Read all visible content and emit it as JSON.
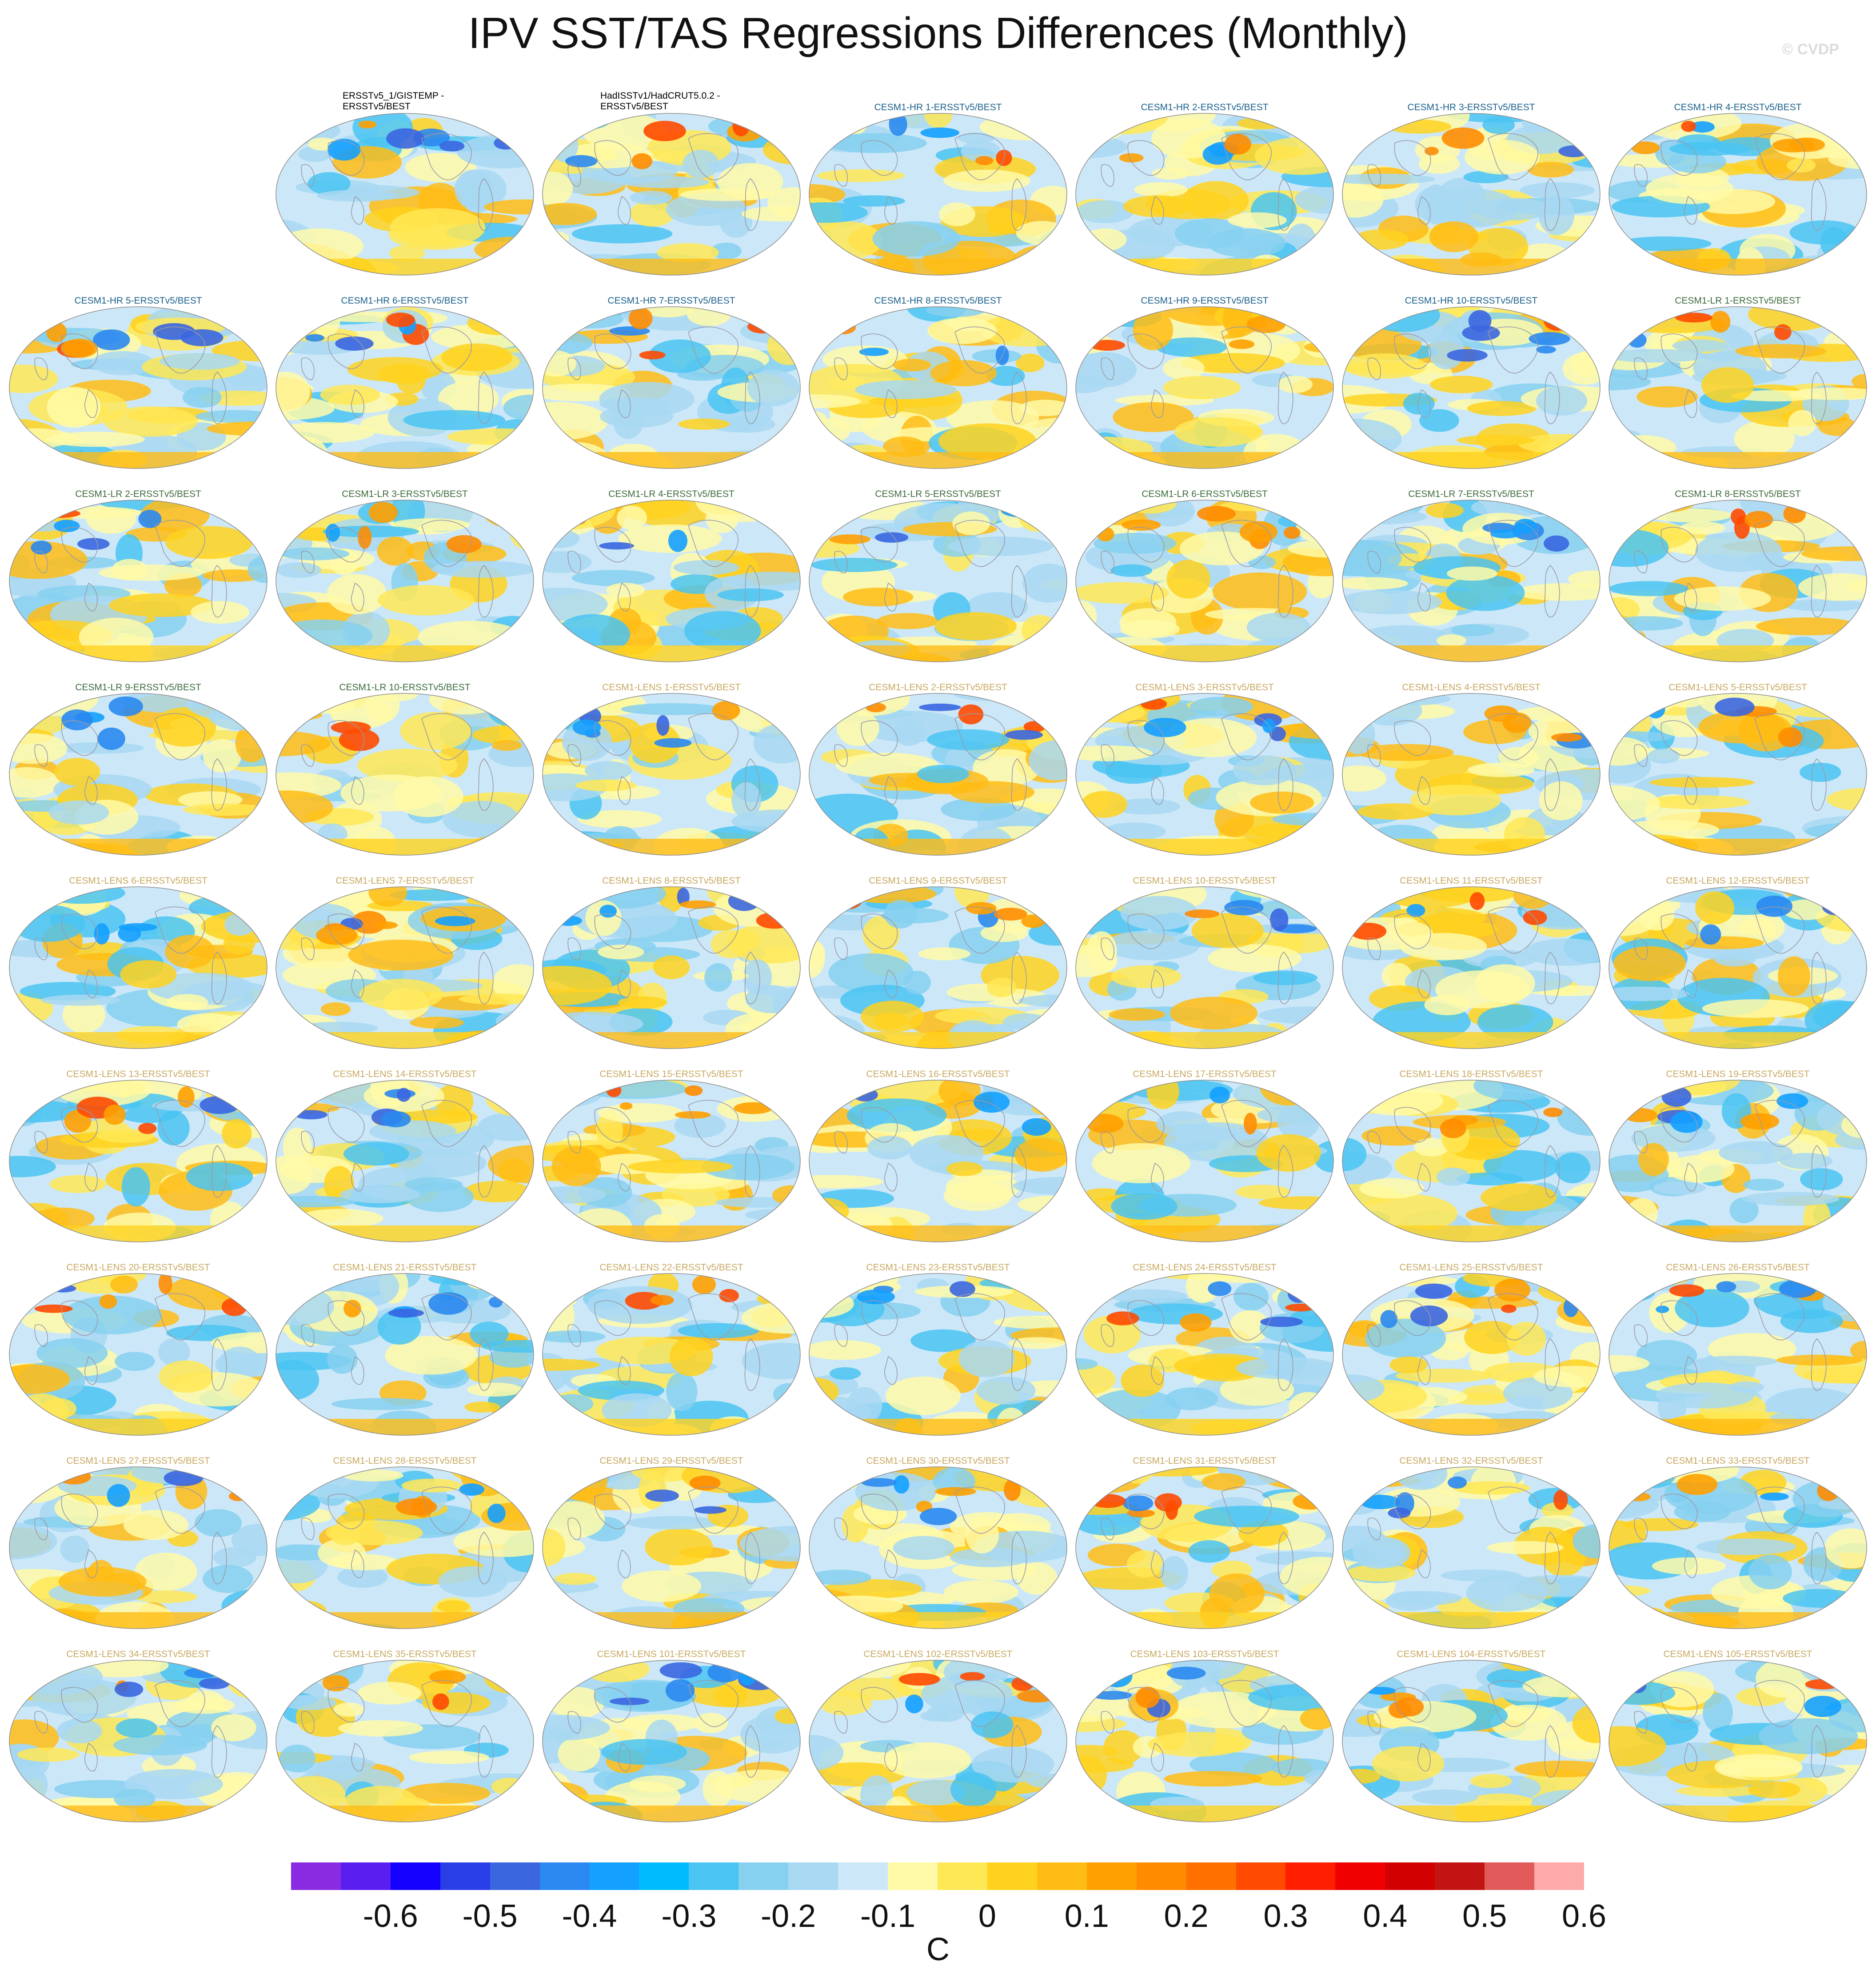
{
  "title": "IPV SST/TAS Regressions Differences (Monthly)",
  "watermark": "© CVDP",
  "chart_data": {
    "type": "heatmap",
    "title": "IPV SST/TAS Regressions Differences (Monthly)",
    "projection": "global ellipse map panels",
    "grid": [
      9,
      7
    ],
    "units": "C",
    "colorbar": {
      "tick_labels": [
        "-0.6",
        "-0.5",
        "-0.4",
        "-0.3",
        "-0.2",
        "-0.1",
        "0",
        "0.1",
        "0.2",
        "0.3",
        "0.4",
        "0.5",
        "0.6"
      ],
      "colors": [
        "#8a2be2",
        "#5a1ef0",
        "#1400ff",
        "#2a3ee8",
        "#3a66e0",
        "#2a88f0",
        "#14a0ff",
        "#00bcff",
        "#4ac4f2",
        "#86d0f0",
        "#a8d8f2",
        "#cce8f8",
        "#fffaa8",
        "#ffe855",
        "#ffd21e",
        "#ffbc14",
        "#ffa000",
        "#ff8c00",
        "#ff7000",
        "#ff4a00",
        "#ff1e00",
        "#f00000",
        "#d20000",
        "#c31414",
        "#e05a5a",
        "#ffaaaa"
      ]
    },
    "title_colors": {
      "obs": "#000000",
      "hr": "#1a5f8a",
      "lr": "#3d6b3d",
      "lens": "#c8a860"
    },
    "panels": [
      {
        "label": "ERSSTv5_1/GISTEMP - ERSSTv5/BEST",
        "group": "obs"
      },
      {
        "label": "HadISSTv1/HadCRUT5.0.2 - ERSSTv5/BEST",
        "group": "obs"
      },
      {
        "label": "CESM1-HR 1-ERSSTv5/BEST",
        "group": "hr"
      },
      {
        "label": "CESM1-HR 2-ERSSTv5/BEST",
        "group": "hr"
      },
      {
        "label": "CESM1-HR 3-ERSSTv5/BEST",
        "group": "hr"
      },
      {
        "label": "CESM1-HR 4-ERSSTv5/BEST",
        "group": "hr"
      },
      {
        "label": "CESM1-HR 5-ERSSTv5/BEST",
        "group": "hr"
      },
      {
        "label": "CESM1-HR 6-ERSSTv5/BEST",
        "group": "hr"
      },
      {
        "label": "CESM1-HR 7-ERSSTv5/BEST",
        "group": "hr"
      },
      {
        "label": "CESM1-HR 8-ERSSTv5/BEST",
        "group": "hr"
      },
      {
        "label": "CESM1-HR 9-ERSSTv5/BEST",
        "group": "hr"
      },
      {
        "label": "CESM1-HR 10-ERSSTv5/BEST",
        "group": "hr"
      },
      {
        "label": "CESM1-LR 1-ERSSTv5/BEST",
        "group": "lr"
      },
      {
        "label": "CESM1-LR 2-ERSSTv5/BEST",
        "group": "lr"
      },
      {
        "label": "CESM1-LR 3-ERSSTv5/BEST",
        "group": "lr"
      },
      {
        "label": "CESM1-LR 4-ERSSTv5/BEST",
        "group": "lr"
      },
      {
        "label": "CESM1-LR 5-ERSSTv5/BEST",
        "group": "lr"
      },
      {
        "label": "CESM1-LR 6-ERSSTv5/BEST",
        "group": "lr"
      },
      {
        "label": "CESM1-LR 7-ERSSTv5/BEST",
        "group": "lr"
      },
      {
        "label": "CESM1-LR 8-ERSSTv5/BEST",
        "group": "lr"
      },
      {
        "label": "CESM1-LR 9-ERSSTv5/BEST",
        "group": "lr"
      },
      {
        "label": "CESM1-LR 10-ERSSTv5/BEST",
        "group": "lr"
      },
      {
        "label": "CESM1-LENS 1-ERSSTv5/BEST",
        "group": "lens"
      },
      {
        "label": "CESM1-LENS 2-ERSSTv5/BEST",
        "group": "lens"
      },
      {
        "label": "CESM1-LENS 3-ERSSTv5/BEST",
        "group": "lens"
      },
      {
        "label": "CESM1-LENS 4-ERSSTv5/BEST",
        "group": "lens"
      },
      {
        "label": "CESM1-LENS 5-ERSSTv5/BEST",
        "group": "lens"
      },
      {
        "label": "CESM1-LENS 6-ERSSTv5/BEST",
        "group": "lens"
      },
      {
        "label": "CESM1-LENS 7-ERSSTv5/BEST",
        "group": "lens"
      },
      {
        "label": "CESM1-LENS 8-ERSSTv5/BEST",
        "group": "lens"
      },
      {
        "label": "CESM1-LENS 9-ERSSTv5/BEST",
        "group": "lens"
      },
      {
        "label": "CESM1-LENS 10-ERSSTv5/BEST",
        "group": "lens"
      },
      {
        "label": "CESM1-LENS 11-ERSSTv5/BEST",
        "group": "lens"
      },
      {
        "label": "CESM1-LENS 12-ERSSTv5/BEST",
        "group": "lens"
      },
      {
        "label": "CESM1-LENS 13-ERSSTv5/BEST",
        "group": "lens"
      },
      {
        "label": "CESM1-LENS 14-ERSSTv5/BEST",
        "group": "lens"
      },
      {
        "label": "CESM1-LENS 15-ERSSTv5/BEST",
        "group": "lens"
      },
      {
        "label": "CESM1-LENS 16-ERSSTv5/BEST",
        "group": "lens"
      },
      {
        "label": "CESM1-LENS 17-ERSSTv5/BEST",
        "group": "lens"
      },
      {
        "label": "CESM1-LENS 18-ERSSTv5/BEST",
        "group": "lens"
      },
      {
        "label": "CESM1-LENS 19-ERSSTv5/BEST",
        "group": "lens"
      },
      {
        "label": "CESM1-LENS 20-ERSSTv5/BEST",
        "group": "lens"
      },
      {
        "label": "CESM1-LENS 21-ERSSTv5/BEST",
        "group": "lens"
      },
      {
        "label": "CESM1-LENS 22-ERSSTv5/BEST",
        "group": "lens"
      },
      {
        "label": "CESM1-LENS 23-ERSSTv5/BEST",
        "group": "lens"
      },
      {
        "label": "CESM1-LENS 24-ERSSTv5/BEST",
        "group": "lens"
      },
      {
        "label": "CESM1-LENS 25-ERSSTv5/BEST",
        "group": "lens"
      },
      {
        "label": "CESM1-LENS 26-ERSSTv5/BEST",
        "group": "lens"
      },
      {
        "label": "CESM1-LENS 27-ERSSTv5/BEST",
        "group": "lens"
      },
      {
        "label": "CESM1-LENS 28-ERSSTv5/BEST",
        "group": "lens"
      },
      {
        "label": "CESM1-LENS 29-ERSSTv5/BEST",
        "group": "lens"
      },
      {
        "label": "CESM1-LENS 30-ERSSTv5/BEST",
        "group": "lens"
      },
      {
        "label": "CESM1-LENS 31-ERSSTv5/BEST",
        "group": "lens"
      },
      {
        "label": "CESM1-LENS 32-ERSSTv5/BEST",
        "group": "lens"
      },
      {
        "label": "CESM1-LENS 33-ERSSTv5/BEST",
        "group": "lens"
      },
      {
        "label": "CESM1-LENS 34-ERSSTv5/BEST",
        "group": "lens"
      },
      {
        "label": "CESM1-LENS 35-ERSSTv5/BEST",
        "group": "lens"
      },
      {
        "label": "CESM1-LENS 101-ERSSTv5/BEST",
        "group": "lens"
      },
      {
        "label": "CESM1-LENS 102-ERSSTv5/BEST",
        "group": "lens"
      },
      {
        "label": "CESM1-LENS 103-ERSSTv5/BEST",
        "group": "lens"
      },
      {
        "label": "CESM1-LENS 104-ERSSTv5/BEST",
        "group": "lens"
      },
      {
        "label": "CESM1-LENS 105-ERSSTv5/BEST",
        "group": "lens"
      }
    ]
  }
}
